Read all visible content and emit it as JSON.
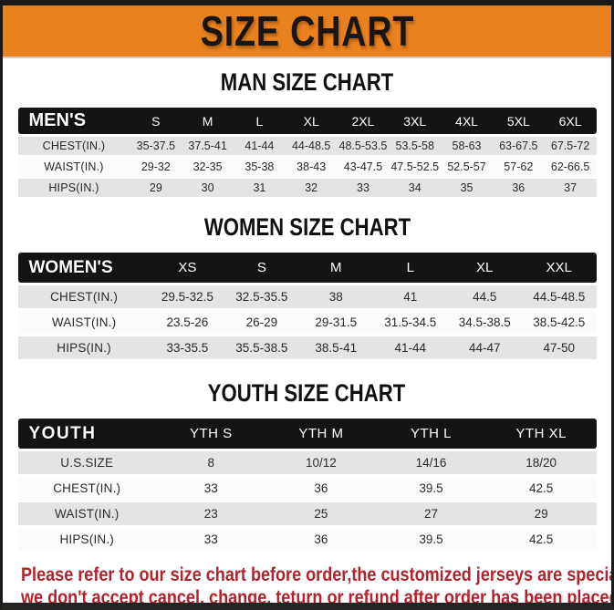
{
  "banner": {
    "title": "SIZE CHART"
  },
  "colors": {
    "banner_orange": "#E8811E",
    "footer_red": "#B2222A",
    "header_black": "#141414",
    "row_shade_gray": "#E4E4E4",
    "frame_black": "#1B1916"
  },
  "sections": [
    {
      "key": "men",
      "heading": "MAN SIZE CHART",
      "table": {
        "header_label": "MEN'S",
        "columns": [
          "S",
          "M",
          "L",
          "XL",
          "2XL",
          "3XL",
          "4XL",
          "5XL",
          "6XL"
        ],
        "rows": [
          {
            "label": "CHEST(IN.)",
            "values": [
              "35-37.5",
              "37.5-41",
              "41-44",
              "44-48.5",
              "48.5-53.5",
              "53.5-58",
              "58-63",
              "63-67.5",
              "67.5-72"
            ]
          },
          {
            "label": "WAIST(IN.)",
            "values": [
              "29-32",
              "32-35",
              "35-38",
              "38-43",
              "43-47.5",
              "47.5-52.5",
              "52.5-57",
              "57-62",
              "62-66.5"
            ]
          },
          {
            "label": "HIPS(IN.)",
            "values": [
              "29",
              "30",
              "31",
              "32",
              "33",
              "34",
              "35",
              "36",
              "37"
            ]
          }
        ]
      }
    },
    {
      "key": "women",
      "heading": "WOMEN SIZE CHART",
      "table": {
        "header_label": "WOMEN'S",
        "columns": [
          "XS",
          "S",
          "M",
          "L",
          "XL",
          "XXL"
        ],
        "rows": [
          {
            "label": "CHEST(IN.)",
            "values": [
              "29.5-32.5",
              "32.5-35.5",
              "38",
              "41",
              "44.5",
              "44.5-48.5"
            ]
          },
          {
            "label": "WAIST(IN.)",
            "values": [
              "23.5-26",
              "26-29",
              "29-31.5",
              "31.5-34.5",
              "34.5-38.5",
              "38.5-42.5"
            ]
          },
          {
            "label": "HIPS(IN.)",
            "values": [
              "33-35.5",
              "35.5-38.5",
              "38.5-41",
              "41-44",
              "44-47",
              "47-50"
            ]
          }
        ]
      }
    },
    {
      "key": "youth",
      "heading": "YOUTH SIZE CHART",
      "table": {
        "header_label": "YOUTH",
        "columns": [
          "YTH S",
          "YTH M",
          "YTH L",
          "YTH XL"
        ],
        "rows": [
          {
            "label": "U.S.SIZE",
            "values": [
              "8",
              "10/12",
              "14/16",
              "18/20"
            ]
          },
          {
            "label": "CHEST(IN.)",
            "values": [
              "33",
              "36",
              "39.5",
              "42.5"
            ]
          },
          {
            "label": "WAIST(IN.)",
            "values": [
              "23",
              "25",
              "27",
              "29"
            ]
          },
          {
            "label": "HIPS(IN.)",
            "values": [
              "33",
              "36",
              "39.5",
              "42.5"
            ]
          }
        ]
      }
    }
  ],
  "footer": {
    "lines": [
      "Please refer to our size chart before order,the customized jerseys are special products,",
      "we don't accept cancel, change, teturn or refund after order has been placed!"
    ]
  }
}
